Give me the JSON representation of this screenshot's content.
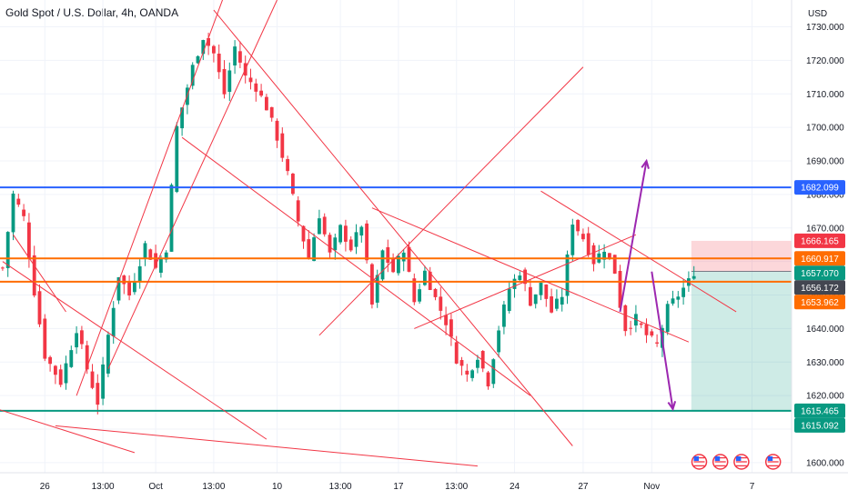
{
  "header": {
    "title": "Gold Spot / U.S. Dollar, 4h, OANDA",
    "currency": "USD"
  },
  "chart_data": {
    "type": "candlestick",
    "title": "Gold Spot / U.S. Dollar, 4h, OANDA",
    "ylabel": "USD",
    "ylim": [
      1597,
      1738
    ],
    "grid": true,
    "y_ticks": [
      "1730.000",
      "1720.000",
      "1710.000",
      "1700.000",
      "1690.000",
      "1680.000",
      "1670.000",
      "1660.000",
      "1650.000",
      "1640.000",
      "1630.000",
      "1620.000",
      "1610.000",
      "1600.000"
    ],
    "y_tick_values": [
      1730,
      1720,
      1710,
      1700,
      1690,
      1680,
      1670,
      1660,
      1650,
      1640,
      1630,
      1620,
      1610,
      1600
    ],
    "x_ticks": [
      "26",
      "13:00",
      "Oct",
      "13:00",
      "10",
      "13:00",
      "17",
      "13:00",
      "24",
      "27",
      "Nov",
      "7"
    ],
    "x_tick_index": [
      8,
      19,
      29,
      40,
      52,
      64,
      75,
      86,
      97,
      110,
      123,
      142
    ],
    "candle_count": 150,
    "anchors": [
      [
        0,
        1658
      ],
      [
        2,
        1680
      ],
      [
        4,
        1673
      ],
      [
        6,
        1651
      ],
      [
        8,
        1632
      ],
      [
        11,
        1624
      ],
      [
        14,
        1640
      ],
      [
        16,
        1628
      ],
      [
        18,
        1618
      ],
      [
        20,
        1638
      ],
      [
        22,
        1656
      ],
      [
        24,
        1650
      ],
      [
        27,
        1665
      ],
      [
        29,
        1658
      ],
      [
        31,
        1664
      ],
      [
        33,
        1700
      ],
      [
        36,
        1718
      ],
      [
        38,
        1727
      ],
      [
        40,
        1722
      ],
      [
        42,
        1710
      ],
      [
        44,
        1724
      ],
      [
        46,
        1715
      ],
      [
        48,
        1712
      ],
      [
        50,
        1706
      ],
      [
        52,
        1697
      ],
      [
        54,
        1686
      ],
      [
        56,
        1672
      ],
      [
        58,
        1661
      ],
      [
        60,
        1674
      ],
      [
        62,
        1662
      ],
      [
        64,
        1670
      ],
      [
        66,
        1664
      ],
      [
        68,
        1671
      ],
      [
        70,
        1647
      ],
      [
        72,
        1663
      ],
      [
        74,
        1657
      ],
      [
        76,
        1664
      ],
      [
        78,
        1648
      ],
      [
        80,
        1657
      ],
      [
        82,
        1649
      ],
      [
        84,
        1642
      ],
      [
        86,
        1631
      ],
      [
        88,
        1626
      ],
      [
        90,
        1632
      ],
      [
        92,
        1624
      ],
      [
        94,
        1640
      ],
      [
        96,
        1652
      ],
      [
        98,
        1657
      ],
      [
        100,
        1648
      ],
      [
        102,
        1653
      ],
      [
        104,
        1645
      ],
      [
        106,
        1650
      ],
      [
        108,
        1672
      ],
      [
        110,
        1667
      ],
      [
        112,
        1660
      ],
      [
        114,
        1664
      ],
      [
        116,
        1657
      ],
      [
        117,
        1647
      ],
      [
        118,
        1640
      ],
      [
        120,
        1643
      ],
      [
        122,
        1638
      ],
      [
        124,
        1635
      ],
      [
        126,
        1646
      ],
      [
        128,
        1650
      ],
      [
        130,
        1654
      ],
      [
        131,
        1657
      ]
    ],
    "series": [
      {
        "name": "XAUUSD",
        "values_ref": "anchors"
      }
    ],
    "horizontal_lines": [
      {
        "price": 1682.099,
        "label": "1682.099",
        "color": "#2962ff"
      },
      {
        "price": 1660.917,
        "label": "1660.917",
        "color": "#ff6d00"
      },
      {
        "price": 1653.962,
        "label": "1653.962",
        "color": "#ff6d00"
      },
      {
        "price": 1615.465,
        "label": "1615.465",
        "color": "#089981"
      }
    ],
    "price_labels": [
      {
        "price": 1666.165,
        "label": "1666.165",
        "color": "#f23645"
      },
      {
        "price": 1660.917,
        "label": "1660.917",
        "color": "#ff6d00"
      },
      {
        "price": 1657.07,
        "label": "1657.070",
        "color": "#089981"
      },
      {
        "price": 1656.172,
        "label": "1656.172",
        "color": "#434651"
      },
      {
        "price": 1653.962,
        "label": "1653.962",
        "color": "#ff6d00"
      },
      {
        "price": 1615.465,
        "label": "1615.465",
        "color": "#089981"
      },
      {
        "price": 1615.092,
        "label": "1615.092",
        "color": "#089981"
      }
    ],
    "position": {
      "type": "short",
      "entry": 1657.07,
      "stop": 1666.165,
      "target": 1615.465,
      "start_index": 131,
      "end_index": 150
    },
    "trend_lines": [
      [
        0,
        1660,
        50,
        1607
      ],
      [
        10,
        1611,
        90,
        1599
      ],
      [
        -3,
        1617,
        25,
        1603
      ],
      [
        2,
        1668,
        12,
        1645
      ],
      [
        14,
        1620,
        44,
        1748
      ],
      [
        20,
        1628,
        52,
        1738
      ],
      [
        40,
        1735,
        108,
        1605
      ],
      [
        34,
        1697,
        100,
        1620
      ],
      [
        70,
        1676,
        130,
        1636
      ],
      [
        60,
        1638,
        110,
        1718
      ],
      [
        78,
        1640,
        120,
        1668
      ],
      [
        102,
        1681,
        139,
        1645
      ]
    ],
    "arrows": [
      {
        "from": [
          117,
          1645
        ],
        "to": [
          122,
          1690
        ],
        "color": "#9c27b0"
      },
      {
        "from": [
          123,
          1657
        ],
        "to": [
          127,
          1616
        ],
        "color": "#9c27b0"
      }
    ],
    "events": [
      {
        "index": 132,
        "icon": "us-flag-icon"
      },
      {
        "index": 136,
        "icon": "us-flag-icon"
      },
      {
        "index": 140,
        "icon": "us-flag-icon"
      },
      {
        "index": 146,
        "icon": "us-flag-icon"
      }
    ],
    "colors": {
      "up": "#089981",
      "down": "#f23645",
      "grid": "#f0f3fa",
      "trend": "#f23645"
    }
  }
}
